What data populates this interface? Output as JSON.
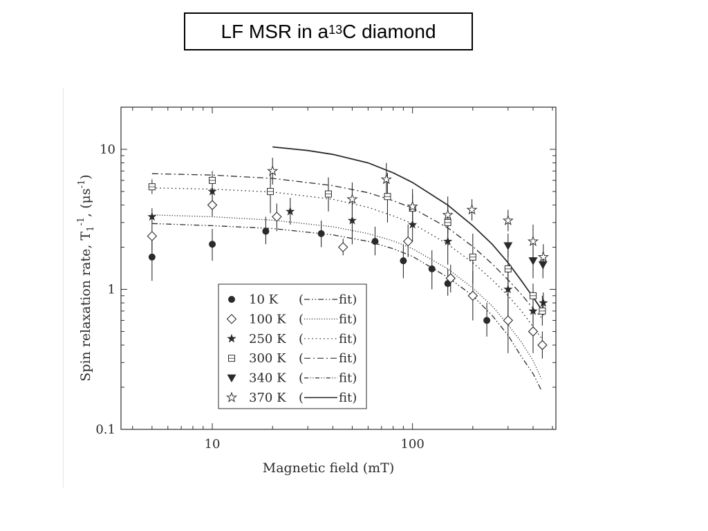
{
  "title": {
    "main": "LF MSR in a ",
    "superscript": "13",
    "rest": "C diamond"
  },
  "chart_data": {
    "type": "scatter",
    "xscale": "log",
    "yscale": "log",
    "xlabel": "Magnetic field (mT)",
    "ylabel_main": "Spin relaxation rate, T",
    "ylabel_sub": "1",
    "ylabel_sup": "-1",
    "ylabel_unit": ", (μs",
    "ylabel_unit_sup": "-1",
    "ylabel_close": ")",
    "xlim": [
      3.5,
      520
    ],
    "ylim": [
      0.1,
      20
    ],
    "xticks": [
      {
        "value": 10,
        "label": "10"
      },
      {
        "value": 100,
        "label": "100"
      }
    ],
    "yticks": [
      {
        "value": 0.1,
        "label": "0.1"
      },
      {
        "value": 1,
        "label": "1"
      },
      {
        "value": 10,
        "label": "10"
      }
    ],
    "legend_position": "bottom-center",
    "series": [
      {
        "name": "10 K",
        "marker": "circle",
        "fit_label": "fit",
        "fit_style": "dash-dot-dot",
        "points": [
          {
            "x": 5,
            "y": 1.7,
            "lo": 1.15,
            "hi": 2.4
          },
          {
            "x": 10,
            "y": 2.1,
            "lo": 1.6,
            "hi": 2.7
          },
          {
            "x": 18.5,
            "y": 2.6,
            "lo": 2.1,
            "hi": 3.3
          },
          {
            "x": 35,
            "y": 2.5,
            "lo": 2.0,
            "hi": 3.1
          },
          {
            "x": 65,
            "y": 2.2,
            "lo": 1.75,
            "hi": 2.8
          },
          {
            "x": 90,
            "y": 1.6,
            "lo": 1.2,
            "hi": 2.1
          },
          {
            "x": 125,
            "y": 1.4,
            "lo": 1.0,
            "hi": 1.9
          },
          {
            "x": 150,
            "y": 1.1,
            "lo": 0.9,
            "hi": 1.4
          },
          {
            "x": 235,
            "y": 0.6,
            "lo": 0.46,
            "hi": 0.8
          }
        ],
        "fit": [
          {
            "x": 5,
            "y": 2.95
          },
          {
            "x": 10,
            "y": 2.85
          },
          {
            "x": 20,
            "y": 2.72
          },
          {
            "x": 40,
            "y": 2.45
          },
          {
            "x": 60,
            "y": 2.2
          },
          {
            "x": 80,
            "y": 1.95
          },
          {
            "x": 100,
            "y": 1.72
          },
          {
            "x": 150,
            "y": 1.22
          },
          {
            "x": 200,
            "y": 0.9
          },
          {
            "x": 250,
            "y": 0.65
          },
          {
            "x": 300,
            "y": 0.47
          },
          {
            "x": 350,
            "y": 0.33
          },
          {
            "x": 400,
            "y": 0.25
          },
          {
            "x": 440,
            "y": 0.19
          }
        ]
      },
      {
        "name": "100 K",
        "marker": "diamond",
        "fit_label": "fit",
        "fit_style": "dotted-fine",
        "points": [
          {
            "x": 5,
            "y": 2.4,
            "lo": 1.9,
            "hi": 2.9
          },
          {
            "x": 10,
            "y": 4.0,
            "lo": 3.3,
            "hi": 5.0
          },
          {
            "x": 21,
            "y": 3.3,
            "lo": 2.6,
            "hi": 4.1
          },
          {
            "x": 45,
            "y": 2.0,
            "lo": 1.75,
            "hi": 2.3
          },
          {
            "x": 95,
            "y": 2.2,
            "lo": 1.7,
            "hi": 2.9
          },
          {
            "x": 155,
            "y": 1.2,
            "lo": 0.95,
            "hi": 1.5
          },
          {
            "x": 200,
            "y": 0.9,
            "lo": 0.6,
            "hi": 1.35
          },
          {
            "x": 300,
            "y": 0.6,
            "lo": 0.35,
            "hi": 1.0
          },
          {
            "x": 400,
            "y": 0.5,
            "lo": 0.35,
            "hi": 0.7
          },
          {
            "x": 445,
            "y": 0.4,
            "lo": 0.32,
            "hi": 0.5
          }
        ],
        "fit": [
          {
            "x": 5,
            "y": 3.4
          },
          {
            "x": 10,
            "y": 3.3
          },
          {
            "x": 20,
            "y": 3.12
          },
          {
            "x": 40,
            "y": 2.8
          },
          {
            "x": 60,
            "y": 2.5
          },
          {
            "x": 80,
            "y": 2.22
          },
          {
            "x": 100,
            "y": 1.95
          },
          {
            "x": 150,
            "y": 1.4
          },
          {
            "x": 200,
            "y": 1.02
          },
          {
            "x": 250,
            "y": 0.76
          },
          {
            "x": 300,
            "y": 0.56
          },
          {
            "x": 350,
            "y": 0.42
          },
          {
            "x": 400,
            "y": 0.31
          },
          {
            "x": 440,
            "y": 0.23
          }
        ]
      },
      {
        "name": "250 K",
        "marker": "star-filled",
        "fit_label": "fit",
        "fit_style": "dotted",
        "points": [
          {
            "x": 5,
            "y": 3.3,
            "lo": 2.9,
            "hi": 3.8
          },
          {
            "x": 10,
            "y": 5.0,
            "lo": 4.2,
            "hi": 6.0
          },
          {
            "x": 24.5,
            "y": 3.6,
            "lo": 2.9,
            "hi": 4.5
          },
          {
            "x": 50,
            "y": 3.1,
            "lo": 2.1,
            "hi": 4.6
          },
          {
            "x": 100,
            "y": 2.9,
            "lo": 2.2,
            "hi": 3.8
          },
          {
            "x": 150,
            "y": 2.2,
            "lo": 1.5,
            "hi": 3.0
          },
          {
            "x": 300,
            "y": 1.0,
            "lo": 0.65,
            "hi": 1.5
          },
          {
            "x": 400,
            "y": 0.7,
            "lo": 0.5,
            "hi": 0.9
          },
          {
            "x": 450,
            "y": 0.8,
            "lo": 0.65,
            "hi": 0.95
          }
        ],
        "fit": [
          {
            "x": 5,
            "y": 5.3
          },
          {
            "x": 10,
            "y": 5.2
          },
          {
            "x": 20,
            "y": 4.95
          },
          {
            "x": 40,
            "y": 4.4
          },
          {
            "x": 60,
            "y": 3.85
          },
          {
            "x": 80,
            "y": 3.35
          },
          {
            "x": 100,
            "y": 2.95
          },
          {
            "x": 150,
            "y": 2.1
          },
          {
            "x": 200,
            "y": 1.55
          },
          {
            "x": 250,
            "y": 1.17
          },
          {
            "x": 300,
            "y": 0.9
          },
          {
            "x": 350,
            "y": 0.7
          },
          {
            "x": 400,
            "y": 0.54
          },
          {
            "x": 440,
            "y": 0.45
          }
        ]
      },
      {
        "name": "300 K",
        "marker": "square-open",
        "fit_label": "fit",
        "fit_style": "dash-dot",
        "points": [
          {
            "x": 5,
            "y": 5.4,
            "lo": 4.8,
            "hi": 6.1
          },
          {
            "x": 10,
            "y": 6.0,
            "lo": 5.2,
            "hi": 7.0
          },
          {
            "x": 19.5,
            "y": 5.0,
            "lo": 3.5,
            "hi": 7.0
          },
          {
            "x": 38,
            "y": 4.8,
            "lo": 3.6,
            "hi": 6.3
          },
          {
            "x": 75,
            "y": 4.6,
            "lo": 3.0,
            "hi": 6.8
          },
          {
            "x": 100,
            "y": 3.8,
            "lo": 3.0,
            "hi": 4.8
          },
          {
            "x": 150,
            "y": 3.0,
            "lo": 2.2,
            "hi": 4.0
          },
          {
            "x": 200,
            "y": 1.7,
            "lo": 1.1,
            "hi": 2.5
          },
          {
            "x": 300,
            "y": 1.4,
            "lo": 1.0,
            "hi": 1.9
          },
          {
            "x": 400,
            "y": 0.9,
            "lo": 0.75,
            "hi": 1.1
          },
          {
            "x": 445,
            "y": 0.7,
            "lo": 0.55,
            "hi": 0.9
          }
        ],
        "fit": [
          {
            "x": 5,
            "y": 6.7
          },
          {
            "x": 10,
            "y": 6.55
          },
          {
            "x": 20,
            "y": 6.2
          },
          {
            "x": 40,
            "y": 5.5
          },
          {
            "x": 60,
            "y": 4.9
          },
          {
            "x": 80,
            "y": 4.3
          },
          {
            "x": 100,
            "y": 3.8
          },
          {
            "x": 150,
            "y": 2.75
          },
          {
            "x": 200,
            "y": 2.02
          },
          {
            "x": 250,
            "y": 1.52
          },
          {
            "x": 300,
            "y": 1.17
          },
          {
            "x": 350,
            "y": 0.92
          },
          {
            "x": 400,
            "y": 0.73
          },
          {
            "x": 440,
            "y": 0.63
          }
        ]
      },
      {
        "name": "340 K",
        "marker": "triangle-down",
        "fit_label": "fit",
        "fit_style": "dash-dot-dot-fine",
        "points": [
          {
            "x": 300,
            "y": 2.05,
            "lo": 1.7,
            "hi": 2.5
          },
          {
            "x": 400,
            "y": 1.6,
            "lo": 1.2,
            "hi": 2.1
          },
          {
            "x": 448,
            "y": 1.5,
            "lo": 1.2,
            "hi": 1.85
          }
        ],
        "fit": []
      },
      {
        "name": "370 K",
        "marker": "star-open",
        "fit_label": "fit",
        "fit_style": "solid",
        "points": [
          {
            "x": 20,
            "y": 7.0,
            "lo": 5.6,
            "hi": 8.7
          },
          {
            "x": 50,
            "y": 4.4,
            "lo": 3.4,
            "hi": 5.8
          },
          {
            "x": 74,
            "y": 6.1,
            "lo": 4.6,
            "hi": 8.0
          },
          {
            "x": 100,
            "y": 3.9,
            "lo": 2.8,
            "hi": 5.2
          },
          {
            "x": 150,
            "y": 3.4,
            "lo": 2.5,
            "hi": 4.6
          },
          {
            "x": 198,
            "y": 3.7,
            "lo": 3.1,
            "hi": 4.4
          },
          {
            "x": 300,
            "y": 3.1,
            "lo": 2.6,
            "hi": 3.7
          },
          {
            "x": 400,
            "y": 2.2,
            "lo": 1.6,
            "hi": 2.9
          },
          {
            "x": 450,
            "y": 1.7,
            "lo": 1.4,
            "hi": 2.1
          }
        ],
        "fit": [
          {
            "x": 20,
            "y": 10.4
          },
          {
            "x": 30,
            "y": 9.8
          },
          {
            "x": 40,
            "y": 9.2
          },
          {
            "x": 60,
            "y": 8.0
          },
          {
            "x": 80,
            "y": 6.8
          },
          {
            "x": 100,
            "y": 5.8
          },
          {
            "x": 150,
            "y": 4.0
          },
          {
            "x": 200,
            "y": 2.85
          },
          {
            "x": 250,
            "y": 2.1
          },
          {
            "x": 300,
            "y": 1.55
          },
          {
            "x": 350,
            "y": 1.15
          },
          {
            "x": 400,
            "y": 0.88
          },
          {
            "x": 440,
            "y": 0.72
          }
        ]
      }
    ]
  }
}
